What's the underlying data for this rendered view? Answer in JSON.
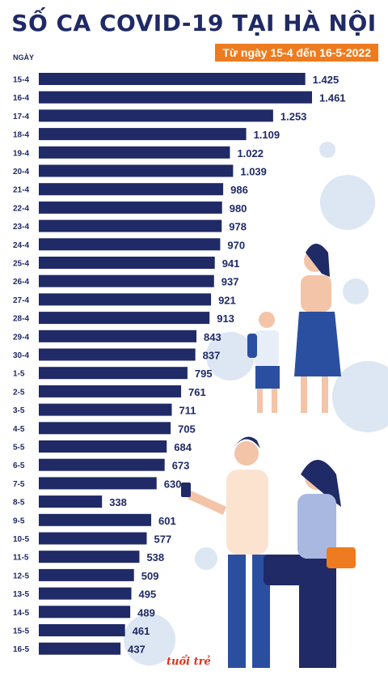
{
  "chart_data": {
    "type": "bar",
    "orientation": "horizontal",
    "title": "SỐ CA COVID-19 TẠI HÀ NỘI",
    "subtitle": "Từ ngày 15-4 đến 16-5-2022",
    "ylabel": "NGÀY",
    "categories": [
      "15-4",
      "16-4",
      "17-4",
      "18-4",
      "19-4",
      "20-4",
      "21-4",
      "22-4",
      "23-4",
      "24-4",
      "25-4",
      "26-4",
      "27-4",
      "28-4",
      "29-4",
      "30-4",
      "1-5",
      "2-5",
      "3-5",
      "4-5",
      "5-5",
      "6-5",
      "7-5",
      "8-5",
      "9-5",
      "10-5",
      "11-5",
      "12-5",
      "13-5",
      "14-5",
      "15-5",
      "16-5"
    ],
    "values": [
      1425,
      1461,
      1253,
      1109,
      1022,
      1039,
      986,
      980,
      978,
      970,
      941,
      937,
      921,
      913,
      843,
      837,
      795,
      761,
      711,
      705,
      684,
      673,
      630,
      338,
      601,
      577,
      538,
      509,
      495,
      489,
      461,
      437
    ],
    "value_labels": [
      "1.425",
      "1.461",
      "1.253",
      "1.109",
      "1.022",
      "1.039",
      "986",
      "980",
      "978",
      "970",
      "941",
      "937",
      "921",
      "913",
      "843",
      "837",
      "795",
      "761",
      "711",
      "705",
      "684",
      "673",
      "630",
      "338",
      "601",
      "577",
      "538",
      "509",
      "495",
      "489",
      "461",
      "437"
    ],
    "xlim": [
      0,
      1461
    ],
    "grid": false,
    "bar_color": "#1f2a66",
    "label_color": "#1f2a66"
  },
  "brand": {
    "logo_text": "tuổi trẻ"
  },
  "colors": {
    "title": "#1f2a66",
    "subtitle_bg": "#ee7b1f",
    "virus": "#c9d6ea"
  }
}
